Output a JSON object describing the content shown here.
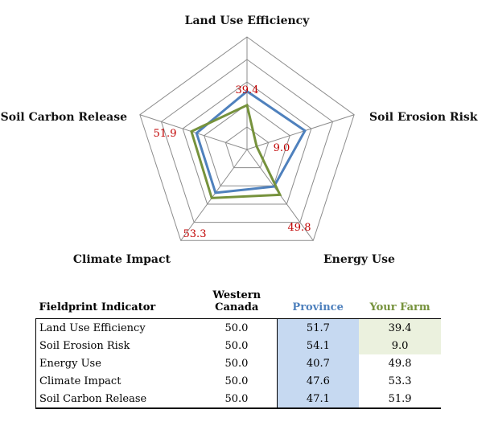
{
  "chart_data": {
    "type": "radar",
    "axes": [
      "Land Use Efficiency",
      "Soil Erosion Risk",
      "Energy Use",
      "Climate Impact",
      "Soil Carbon Release"
    ],
    "rmax": 100,
    "rings": 5,
    "series": [
      {
        "name": "Province",
        "color": "#4f81bd",
        "values": [
          51.7,
          54.1,
          40.7,
          47.6,
          47.1
        ]
      },
      {
        "name": "Your Farm",
        "color": "#76923c",
        "values": [
          39.4,
          9.0,
          49.8,
          53.3,
          51.9
        ]
      }
    ],
    "value_labels": [
      "39.4",
      "9.0",
      "49.8",
      "53.3",
      "51.9"
    ]
  },
  "table": {
    "headers": {
      "indicator": "Fieldprint Indicator",
      "western_line1": "Western",
      "western_line2": "Canada",
      "province": "Province",
      "farm": "Your Farm"
    },
    "rows": [
      {
        "indicator": "Land Use Efficiency",
        "western": "50.0",
        "province": "51.7",
        "farm": "39.4"
      },
      {
        "indicator": "Soil Erosion Risk",
        "western": "50.0",
        "province": "54.1",
        "farm": "9.0"
      },
      {
        "indicator": "Energy Use",
        "western": "50.0",
        "province": "40.7",
        "farm": "49.8"
      },
      {
        "indicator": "Climate Impact",
        "western": "50.0",
        "province": "47.6",
        "farm": "53.3"
      },
      {
        "indicator": "Soil Carbon Release",
        "western": "50.0",
        "province": "47.1",
        "farm": "51.9"
      }
    ],
    "colors": {
      "province_header": "#4f81bd",
      "farm_header": "#76923c",
      "province_fill": "#c6d9f1",
      "farm_fill": "#ebf1de"
    }
  }
}
